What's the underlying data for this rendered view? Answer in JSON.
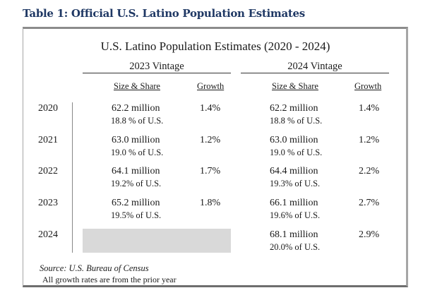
{
  "document": {
    "title": "Table 1: Official U.S. Latino Population Estimates"
  },
  "table": {
    "title": "U.S. Latino Population Estimates (2020 - 2024)",
    "vintages": [
      {
        "label": "2023 Vintage",
        "col_size": "Size & Share",
        "col_growth": "Growth"
      },
      {
        "label": "2024 Vintage",
        "col_size": "Size & Share",
        "col_growth": "Growth"
      }
    ],
    "rows": [
      {
        "year": "2020",
        "v2023": {
          "size": "62.2 million",
          "share": "18.8 % of U.S.",
          "growth": "1.4%"
        },
        "v2024": {
          "size": "62.2 million",
          "share": "18.8 % of U.S.",
          "growth": "1.4%"
        }
      },
      {
        "year": "2021",
        "v2023": {
          "size": "63.0 million",
          "share": "19.0 % of U.S.",
          "growth": "1.2%"
        },
        "v2024": {
          "size": "63.0 million",
          "share": "19.0 % of U.S.",
          "growth": "1.2%"
        }
      },
      {
        "year": "2022",
        "v2023": {
          "size": "64.1 million",
          "share": "19.2% of U.S.",
          "growth": "1.7%"
        },
        "v2024": {
          "size": "64.4 million",
          "share": "19.3% of U.S.",
          "growth": "2.2%"
        }
      },
      {
        "year": "2023",
        "v2023": {
          "size": "65.2 million",
          "share": "19.5% of U.S.",
          "growth": "1.8%"
        },
        "v2024": {
          "size": "66.1 million",
          "share": "19.6% of U.S.",
          "growth": "2.7%"
        }
      },
      {
        "year": "2024",
        "v2023": null,
        "v2024": {
          "size": "68.1 million",
          "share": "20.0% of U.S.",
          "growth": "2.9%"
        }
      }
    ],
    "source": "Source: U.S. Bureau of Census",
    "note": "All growth rates are from the prior year"
  }
}
